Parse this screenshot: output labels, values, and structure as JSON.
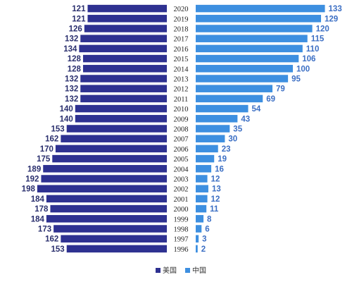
{
  "colors": {
    "us": "#2e3191",
    "cn": "#3d8fe0"
  },
  "chart_data": {
    "type": "bar",
    "orientation": "horizontal-butterfly",
    "categories": [
      "2020",
      "2019",
      "2018",
      "2017",
      "2016",
      "2015",
      "2014",
      "2013",
      "2012",
      "2011",
      "2010",
      "2009",
      "2008",
      "2007",
      "2006",
      "2005",
      "2004",
      "2003",
      "2002",
      "2001",
      "2000",
      "1999",
      "1998",
      "1997",
      "1996"
    ],
    "series": [
      {
        "name": "美国",
        "values": [
          121,
          121,
          126,
          132,
          134,
          128,
          128,
          132,
          132,
          132,
          140,
          140,
          153,
          162,
          170,
          175,
          189,
          192,
          198,
          184,
          178,
          184,
          173,
          162,
          153
        ]
      },
      {
        "name": "中国",
        "values": [
          133,
          129,
          120,
          115,
          110,
          106,
          100,
          95,
          79,
          69,
          54,
          43,
          35,
          30,
          23,
          19,
          16,
          12,
          13,
          12,
          11,
          8,
          6,
          3,
          2
        ]
      }
    ],
    "legend_position": "bottom",
    "grid": false
  }
}
